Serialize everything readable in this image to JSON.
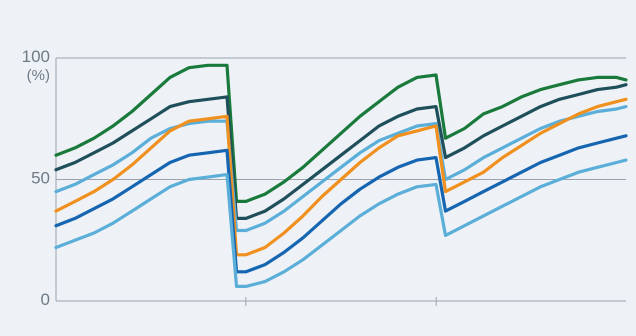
{
  "chart_data": {
    "type": "line",
    "title": "",
    "xlabel": "",
    "ylabel": "",
    "ylim": [
      0,
      100
    ],
    "y_ticks": [
      {
        "value": 100,
        "label": "100",
        "sub": "(%)"
      },
      {
        "value": 50,
        "label": "50",
        "sub": ""
      },
      {
        "value": 0,
        "label": "0",
        "sub": ""
      }
    ],
    "x_ticks": [
      0.333,
      0.667
    ],
    "grid": {
      "horizontal_at": [
        50
      ],
      "vertical": false
    },
    "legend": "none",
    "x": [
      0,
      0.0333,
      0.0667,
      0.1,
      0.1333,
      0.1667,
      0.2,
      0.2333,
      0.2667,
      0.3,
      0.3167,
      0.3333,
      0.3667,
      0.4,
      0.4333,
      0.4667,
      0.5,
      0.5333,
      0.5667,
      0.6,
      0.6333,
      0.6667,
      0.6833,
      0.7167,
      0.75,
      0.7833,
      0.8167,
      0.85,
      0.8833,
      0.9167,
      0.95,
      0.9833,
      1.0
    ],
    "series": [
      {
        "color": "#1a7a3c",
        "values": [
          60,
          63,
          67,
          72,
          78,
          85,
          92,
          96,
          97,
          97,
          41,
          41,
          44,
          49,
          55,
          62,
          69,
          76,
          82,
          88,
          92,
          93,
          67,
          71,
          77,
          80,
          84,
          87,
          89,
          91,
          92,
          92,
          91
        ]
      },
      {
        "color": "#1e4f5b",
        "values": [
          54,
          57,
          61,
          65,
          70,
          75,
          80,
          82,
          83,
          84,
          34,
          34,
          37,
          42,
          48,
          54,
          60,
          66,
          72,
          76,
          79,
          80,
          59,
          63,
          68,
          72,
          76,
          80,
          83,
          85,
          87,
          88,
          89
        ]
      },
      {
        "color": "#5aaed8",
        "values": [
          45,
          48,
          52,
          56,
          61,
          67,
          71,
          73,
          74,
          74,
          29,
          29,
          32,
          37,
          43,
          49,
          55,
          61,
          66,
          69,
          72,
          73,
          50,
          54,
          59,
          63,
          67,
          71,
          74,
          76,
          78,
          79,
          80
        ]
      },
      {
        "color": "#f0901e",
        "values": [
          37,
          41,
          45,
          50,
          56,
          63,
          70,
          74,
          75,
          76,
          19,
          19,
          22,
          28,
          35,
          43,
          50,
          57,
          63,
          68,
          70,
          72,
          45,
          49,
          53,
          59,
          64,
          69,
          73,
          77,
          80,
          82,
          83
        ]
      },
      {
        "color": "#1565b0",
        "values": [
          31,
          34,
          38,
          42,
          47,
          52,
          57,
          60,
          61,
          62,
          12,
          12,
          15,
          20,
          26,
          33,
          40,
          46,
          51,
          55,
          58,
          59,
          37,
          41,
          45,
          49,
          53,
          57,
          60,
          63,
          65,
          67,
          68
        ]
      },
      {
        "color": "#5aaed8",
        "values": [
          22,
          25,
          28,
          32,
          37,
          42,
          47,
          50,
          51,
          52,
          6,
          6,
          8,
          12,
          17,
          23,
          29,
          35,
          40,
          44,
          47,
          48,
          27,
          31,
          35,
          39,
          43,
          47,
          50,
          53,
          55,
          57,
          58
        ]
      }
    ]
  }
}
